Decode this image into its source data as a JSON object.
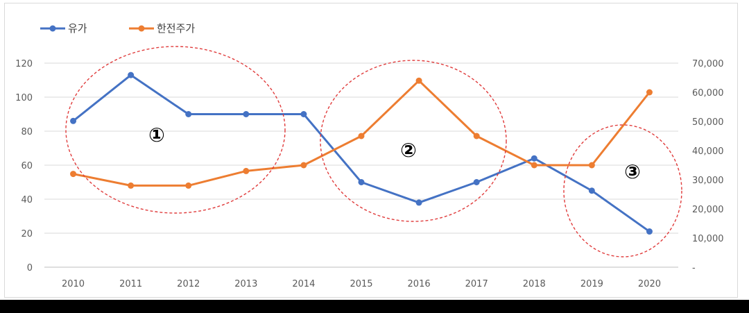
{
  "chart_data": {
    "type": "line",
    "title": "",
    "xlabel": "",
    "ylabel": "",
    "categories": [
      "2010",
      "2011",
      "2012",
      "2013",
      "2014",
      "2015",
      "2016",
      "2017",
      "2018",
      "2019",
      "2020"
    ],
    "y_left": {
      "ylim": [
        0,
        120
      ],
      "ticks": [
        0,
        20,
        40,
        60,
        80,
        100,
        120
      ],
      "tick_labels": [
        "0",
        "20",
        "40",
        "60",
        "80",
        "100",
        "120"
      ]
    },
    "y_right": {
      "ylim": [
        0,
        70000
      ],
      "ticks": [
        0,
        10000,
        20000,
        30000,
        40000,
        50000,
        60000,
        70000
      ],
      "tick_labels": [
        "-",
        "10,000",
        "20,000",
        "30,000",
        "40,000",
        "50,000",
        "60,000",
        "70,000"
      ]
    },
    "series": [
      {
        "name": "유가",
        "axis": "left",
        "color": "#4472c4",
        "values": [
          86,
          113,
          90,
          90,
          90,
          50,
          38,
          50,
          64,
          45,
          21
        ]
      },
      {
        "name": "한전주가",
        "axis": "right",
        "color": "#ed7d31",
        "values": [
          32000,
          28000,
          28000,
          33000,
          35000,
          45000,
          64000,
          45000,
          35000,
          35000,
          60000
        ]
      }
    ],
    "grid": true,
    "legend": "top-left",
    "annotations": [
      {
        "label": "①",
        "shape": "dashed-ellipse",
        "color": "#e03c3c",
        "years": [
          "2010",
          "2013"
        ]
      },
      {
        "label": "②",
        "shape": "dashed-ellipse",
        "color": "#e03c3c",
        "years": [
          "2015",
          "2017"
        ]
      },
      {
        "label": "③",
        "shape": "dashed-ellipse",
        "color": "#e03c3c",
        "years": [
          "2019",
          "2020"
        ]
      }
    ]
  }
}
